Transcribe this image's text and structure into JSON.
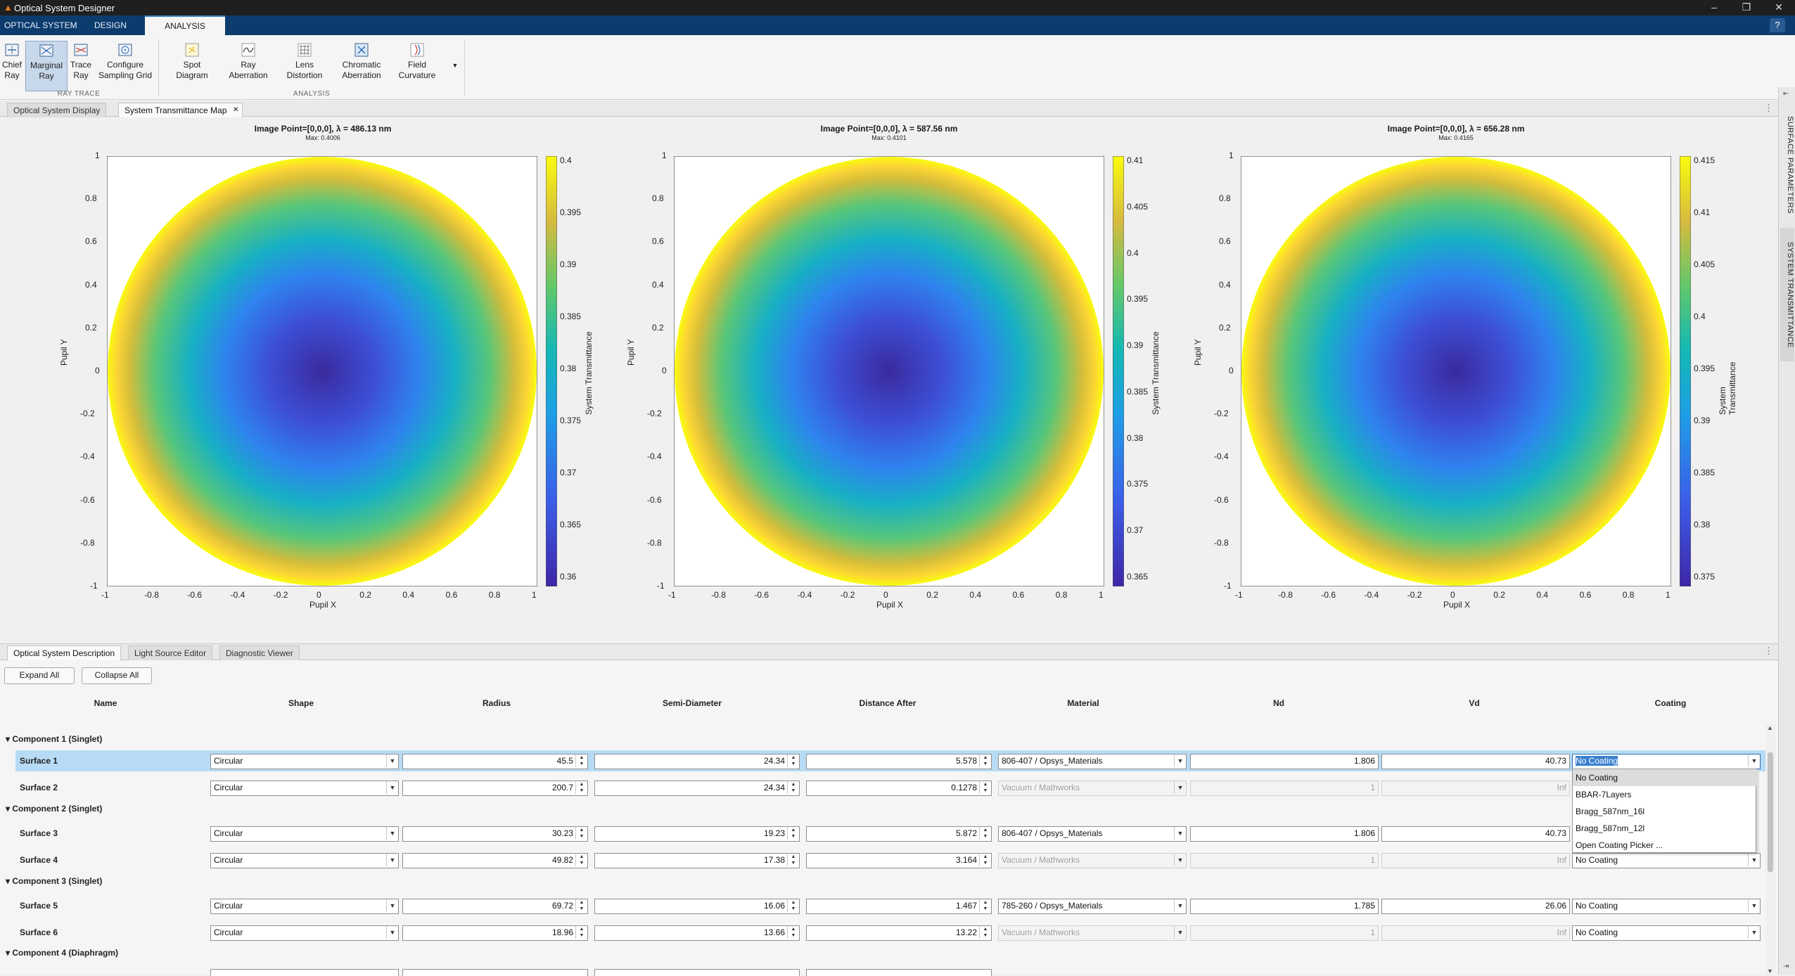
{
  "window": {
    "title": "Optical System Designer",
    "minimize": "–",
    "restore": "❐",
    "close": "✕"
  },
  "ribbon": {
    "tabs": [
      {
        "label": "OPTICAL SYSTEM"
      },
      {
        "label": "DESIGN"
      },
      {
        "label": "ANALYSIS"
      }
    ],
    "active_tab": "ANALYSIS",
    "help": "?",
    "ray_trace": {
      "group_label": "RAY TRACE",
      "buttons": [
        {
          "label": "Chief Ray"
        },
        {
          "label": "Marginal Ray"
        },
        {
          "label": "Trace Ray"
        },
        {
          "label": "Configure Sampling Grid"
        }
      ]
    },
    "analysis": {
      "group_label": "ANALYSIS",
      "buttons": [
        {
          "label": "Spot Diagram"
        },
        {
          "label": "Ray Aberration"
        },
        {
          "label": "Lens Distortion"
        },
        {
          "label": "Chromatic Aberration"
        },
        {
          "label": "Field Curvature"
        }
      ]
    }
  },
  "doc_tabs": {
    "tab1": "Optical System Display",
    "tab2": "System Transmittance Map",
    "close": "✕"
  },
  "plots": [
    {
      "title": "Image Point=[0,0,0], λ = 486.13 nm",
      "subtitle": "Max: 0.4006",
      "colorbar_ticks": [
        "0.4",
        "0.395",
        "0.39",
        "0.385",
        "0.38",
        "0.375",
        "0.37",
        "0.365",
        "0.36"
      ]
    },
    {
      "title": "Image Point=[0,0,0], λ = 587.56 nm",
      "subtitle": "Max: 0.4101",
      "colorbar_ticks": [
        "0.41",
        "0.405",
        "0.4",
        "0.395",
        "0.39",
        "0.385",
        "0.38",
        "0.375",
        "0.37",
        "0.365"
      ]
    },
    {
      "title": "Image Point=[0,0,0], λ = 656.28 nm",
      "subtitle": "Max: 0.4165",
      "colorbar_ticks": [
        "0.415",
        "0.41",
        "0.405",
        "0.4",
        "0.395",
        "0.39",
        "0.385",
        "0.38",
        "0.375"
      ]
    }
  ],
  "axis": {
    "xlabel": "Pupil X",
    "ylabel": "Pupil Y",
    "colorbar_label": "System Transmittance",
    "ticks": [
      "-1",
      "-0.8",
      "-0.6",
      "-0.4",
      "-0.2",
      "0",
      "0.2",
      "0.4",
      "0.6",
      "0.8",
      "1"
    ]
  },
  "side_tabs": [
    "SURFACE PARAMETERS",
    "SYSTEM TRANSMITTANCE"
  ],
  "bottom": {
    "tabs": [
      "Optical System Description",
      "Light Source Editor",
      "Diagnostic Viewer"
    ],
    "expand_all": "Expand All",
    "collapse_all": "Collapse All",
    "columns": [
      "Name",
      "Shape",
      "Radius",
      "Semi-Diameter",
      "Distance After",
      "Material",
      "Nd",
      "Vd",
      "Coating"
    ],
    "groups": [
      "Component 1 (Singlet)",
      "Component 2 (Singlet)",
      "Component 3 (Singlet)",
      "Component 4 (Diaphragm)"
    ],
    "rows": [
      {
        "name": "Surface 1",
        "shape": "Circular",
        "radius": "45.5",
        "semi": "24.34",
        "dist": "5.578",
        "material": "806-407 / Opsys_Materials",
        "nd": "1.806",
        "vd": "40.73",
        "coating": "No Coating"
      },
      {
        "name": "Surface 2",
        "shape": "Circular",
        "radius": "200.7",
        "semi": "24.34",
        "dist": "0.1278",
        "material": "Vacuum / Mathworks",
        "nd": "1",
        "vd": "Inf",
        "coating": ""
      },
      {
        "name": "Surface 3",
        "shape": "Circular",
        "radius": "30.23",
        "semi": "19.23",
        "dist": "5.872",
        "material": "806-407 / Opsys_Materials",
        "nd": "1.806",
        "vd": "40.73",
        "coating": ""
      },
      {
        "name": "Surface 4",
        "shape": "Circular",
        "radius": "49.82",
        "semi": "17.38",
        "dist": "3.164",
        "material": "Vacuum / Mathworks",
        "nd": "1",
        "vd": "Inf",
        "coating": "No Coating"
      },
      {
        "name": "Surface 5",
        "shape": "Circular",
        "radius": "69.72",
        "semi": "16.06",
        "dist": "1.467",
        "material": "785-260 / Opsys_Materials",
        "nd": "1.785",
        "vd": "26.06",
        "coating": "No Coating"
      },
      {
        "name": "Surface 6",
        "shape": "Circular",
        "radius": "18.96",
        "semi": "13.66",
        "dist": "13.22",
        "material": "Vacuum / Mathworks",
        "nd": "1",
        "vd": "Inf",
        "coating": "No Coating"
      }
    ],
    "coating_options": [
      "No Coating",
      "BBAR-7Layers",
      "Bragg_587nm_16l",
      "Bragg_587nm_12l",
      "Open Coating Picker ..."
    ]
  }
}
